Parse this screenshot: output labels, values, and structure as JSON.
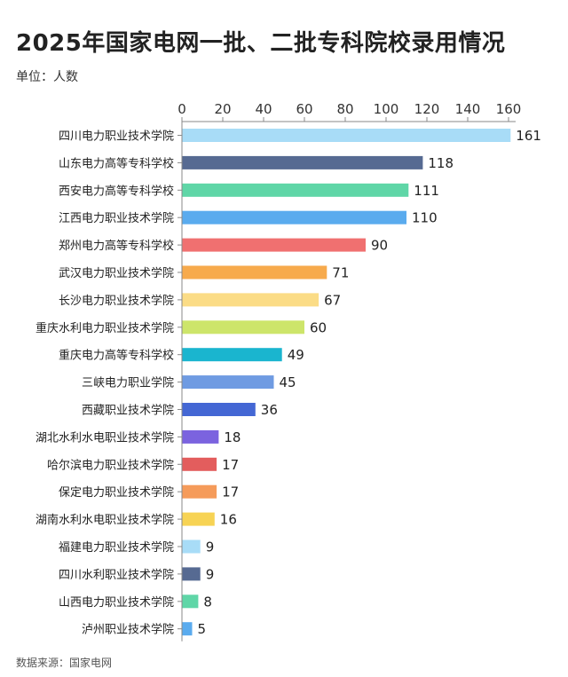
{
  "title": "2025年国家电网一批、二批专科院校录用情况",
  "unit_label": "单位：人数",
  "source_label": "数据来源：国家电网",
  "chart_data": {
    "type": "bar",
    "orientation": "horizontal",
    "categories": [
      "四川电力职业技术学院",
      "山东电力高等专科学校",
      "西安电力高等专科学校",
      "江西电力职业技术学院",
      "郑州电力高等专科学校",
      "武汉电力职业技术学院",
      "长沙电力职业技术学院",
      "重庆水利电力职业技术学院",
      "重庆电力高等专科学校",
      "三峡电力职业学院",
      "西藏职业技术学院",
      "湖北水利水电职业技术学院",
      "哈尔滨电力职业技术学院",
      "保定电力职业技术学院",
      "湖南水利水电职业技术学院",
      "福建电力职业技术学院",
      "四川水利职业技术学院",
      "山西电力职业技术学院",
      "泸州职业技术学院"
    ],
    "values": [
      161,
      118,
      111,
      110,
      90,
      71,
      67,
      60,
      49,
      45,
      36,
      18,
      17,
      17,
      16,
      9,
      9,
      8,
      5
    ],
    "colors": [
      "#a8dcf7",
      "#566a92",
      "#5fd6a7",
      "#5aabee",
      "#f07070",
      "#f7aa4c",
      "#fbdc86",
      "#cde56a",
      "#1ab5cf",
      "#6f9be2",
      "#4467d4",
      "#7b63df",
      "#e35d5d",
      "#f59b5a",
      "#f7d354",
      "#a8dcf7",
      "#566a92",
      "#5fd6a7",
      "#5aabee"
    ],
    "xlim": [
      0,
      170
    ],
    "xticks": [
      0,
      20,
      40,
      60,
      80,
      100,
      120,
      140,
      160
    ],
    "axis_position": "top",
    "grid": false,
    "legend": "none",
    "data_labels": true
  }
}
